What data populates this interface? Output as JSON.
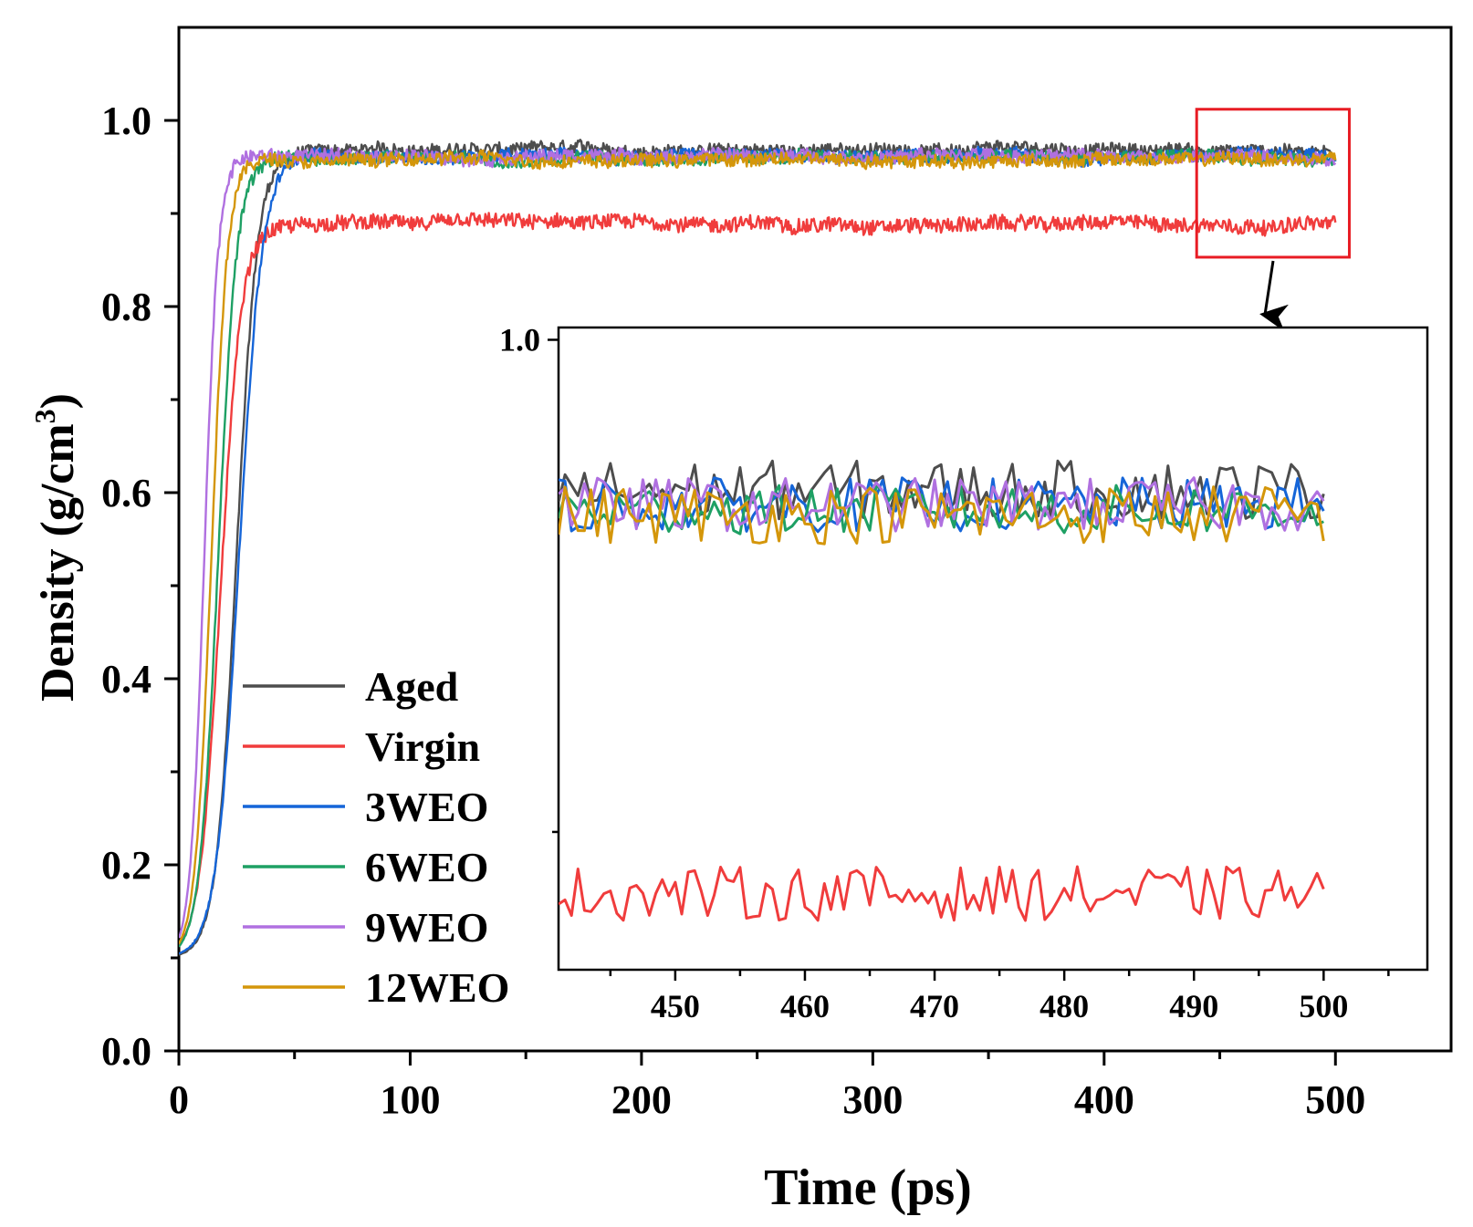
{
  "chart_data": {
    "type": "line",
    "main": {
      "xlabel": "Time (ps)",
      "ylabel_main": "Density (g/cm",
      "ylabel_sup": "3",
      "ylabel_close": ")",
      "xlim": [
        0,
        550
      ],
      "ylim": [
        0.0,
        1.1
      ],
      "xticks": [
        0,
        100,
        200,
        300,
        400,
        500
      ],
      "xtick_labels": [
        "0",
        "100",
        "200",
        "300",
        "400",
        "500"
      ],
      "yticks": [
        0.0,
        0.2,
        0.4,
        0.6,
        0.8,
        1.0
      ],
      "ytick_labels": [
        "0.0",
        "0.2",
        "0.4",
        "0.6",
        "0.8",
        "1.0"
      ],
      "start_density": 0.1
    },
    "inset": {
      "xlim": [
        441,
        508
      ],
      "ylim": [
        0.872,
        1.0025
      ],
      "xticks": [
        450,
        460,
        470,
        480,
        490,
        500
      ],
      "xtick_labels": [
        "450",
        "460",
        "470",
        "480",
        "490",
        "500"
      ],
      "yticks": [
        1.0
      ],
      "ytick_labels": [
        "1.0"
      ],
      "highlight_range_x": [
        440,
        506
      ],
      "highlight_range_y": [
        0.853,
        1.012
      ]
    },
    "series": [
      {
        "name": "Aged",
        "color": "#4d4d4d",
        "plateau": 0.968,
        "half_time": 25,
        "rise_width": 4.5,
        "noise": 0.007,
        "inset_mean": 0.9695,
        "inset_amp": 0.006
      },
      {
        "name": "Virgin",
        "color": "#f03c3c",
        "plateau": 0.889,
        "half_time": 18,
        "rise_width": 4.5,
        "noise": 0.008,
        "inset_mean": 0.8875,
        "inset_amp": 0.0055
      },
      {
        "name": "3WEO",
        "color": "#1565d8",
        "plateau": 0.962,
        "half_time": 26,
        "rise_width": 5.0,
        "noise": 0.007,
        "inset_mean": 0.9665,
        "inset_amp": 0.0055
      },
      {
        "name": "6WEO",
        "color": "#1ea064",
        "plateau": 0.96,
        "half_time": 17,
        "rise_width": 4.0,
        "noise": 0.007,
        "inset_mean": 0.9655,
        "inset_amp": 0.005
      },
      {
        "name": "9WEO",
        "color": "#b070e0",
        "plateau": 0.962,
        "half_time": 11,
        "rise_width": 3.0,
        "noise": 0.007,
        "inset_mean": 0.9665,
        "inset_amp": 0.0055
      },
      {
        "name": "12WEO",
        "color": "#d4960a",
        "plateau": 0.958,
        "half_time": 14,
        "rise_width": 3.5,
        "noise": 0.007,
        "inset_mean": 0.9645,
        "inset_amp": 0.006
      }
    ]
  }
}
